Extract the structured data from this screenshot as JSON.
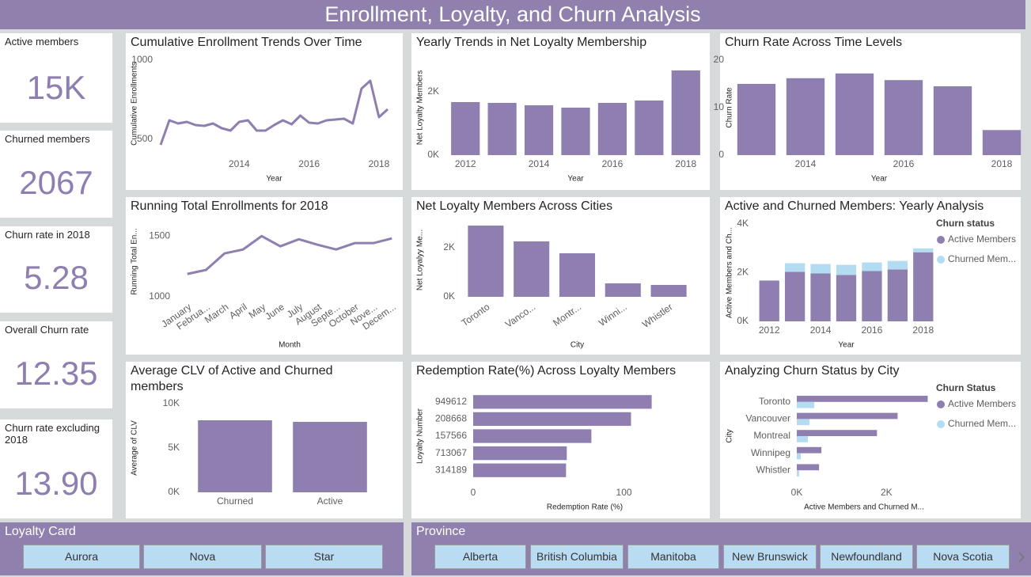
{
  "header": {
    "title": "Enrollment, Loyalty, and Churn Analysis"
  },
  "kpis": [
    {
      "label": "Active members",
      "value": "15K"
    },
    {
      "label": "Churned members",
      "value": "2067"
    },
    {
      "label": "Churn rate in 2018",
      "value": "5.28"
    },
    {
      "label": "Overall Churn rate",
      "value": "12.35"
    },
    {
      "label": "Churn rate excluding 2018",
      "value": "13.90"
    }
  ],
  "chart_data": [
    {
      "type": "line",
      "title": "Cumulative Enrollment Trends Over Time",
      "x_label": "Year",
      "y_label": "Cumulative Enrollments",
      "x": [
        2011.75,
        2012,
        2012.25,
        2012.5,
        2012.75,
        2013,
        2013.25,
        2013.5,
        2013.75,
        2014,
        2014.25,
        2014.5,
        2014.75,
        2015,
        2015.25,
        2015.5,
        2015.75,
        2016,
        2016.25,
        2016.5,
        2016.75,
        2017,
        2017.25,
        2017.5,
        2017.75,
        2018,
        2018.25
      ],
      "values": [
        465,
        620,
        600,
        610,
        590,
        585,
        600,
        570,
        555,
        610,
        620,
        555,
        555,
        590,
        620,
        595,
        650,
        605,
        600,
        620,
        625,
        630,
        600,
        820,
        870,
        640,
        690
      ],
      "color": "#8e7fb0",
      "xlim": [
        2011.75,
        2018.25
      ],
      "xticks": [
        2014,
        2016,
        2018
      ],
      "ylim": [
        430,
        1020
      ],
      "yticks": [
        500,
        1000
      ]
    },
    {
      "type": "bar",
      "title": "Yearly Trends in Net Loyalty Membership",
      "x_label": "Year",
      "y_label": "Net Loyalty Members",
      "categories": [
        "2012",
        null,
        "2014",
        null,
        "2016",
        null,
        "2018"
      ],
      "values": [
        1675,
        1650,
        1575,
        1500,
        1650,
        1725,
        2675
      ],
      "color": "#8e7fb0",
      "ylim": [
        0,
        3000
      ],
      "yticks": [
        {
          "value": 0,
          "label": "0K"
        },
        {
          "value": 2000,
          "label": "2K"
        }
      ]
    },
    {
      "type": "bar",
      "title": "Churn Rate Across Time Levels",
      "x_label": "Year",
      "y_label": "Churn Rate",
      "categories": [
        null,
        "2014",
        null,
        "2016",
        null,
        "2018"
      ],
      "values": [
        15,
        16.2,
        17.2,
        15.8,
        14.5,
        5.28
      ],
      "color": "#8e7fb0",
      "ylim": [
        0,
        20
      ],
      "yticks": [
        0,
        10,
        20
      ]
    },
    {
      "type": "line",
      "title": "Running Total Enrollments for 2018",
      "x_label": "Month",
      "y_label": "Running Total En...",
      "categories": [
        "January",
        "Februa...",
        "March",
        "April",
        "May",
        "June",
        "July",
        "August",
        "Septe...",
        "October",
        "Nove...",
        "Decem..."
      ],
      "values": [
        1188,
        1221,
        1357,
        1390,
        1500,
        1416,
        1474,
        1429,
        1390,
        1442,
        1442,
        1481
      ],
      "color": "#8e7fb0",
      "ylim": [
        1000,
        1580
      ],
      "yticks": [
        1000,
        1500
      ]
    },
    {
      "type": "bar",
      "title": "Net Loyalty Members Across Cities",
      "x_label": "City",
      "y_label": "Net Loyalyy Me...",
      "categories": [
        "Toronto",
        "Vanco...",
        "Montr...",
        "Winni...",
        "Whistler"
      ],
      "values": [
        2903,
        2258,
        1774,
        548,
        484
      ],
      "color": "#8e7fb0",
      "ylim": [
        0,
        3000
      ],
      "yticks": [
        {
          "value": 0,
          "label": "0K"
        },
        {
          "value": 2000,
          "label": "2K"
        }
      ]
    },
    {
      "type": "bar",
      "title": "Active and Churned Members: Yearly Analysis",
      "x_label": "Year",
      "y_label": "Active Members and Ch...",
      "stacked": true,
      "legend_title": "Churn status",
      "categories": [
        "2012",
        null,
        "2014",
        null,
        "2016",
        null,
        "2018"
      ],
      "series": [
        {
          "name": "Active Members",
          "color": "#8e7fb0",
          "values": [
            1677,
            2032,
            1968,
            1903,
            2065,
            2129,
            2839
          ]
        },
        {
          "name": "Churned Mem...",
          "color": "#b3dcf3",
          "values": [
            0,
            355,
            387,
            420,
            354,
            355,
            161
          ]
        }
      ],
      "ylim": [
        0,
        4000
      ],
      "yticks": [
        {
          "value": 0,
          "label": "0K"
        },
        {
          "value": 2000,
          "label": "2K"
        },
        {
          "value": 4000,
          "label": "4K"
        }
      ]
    },
    {
      "type": "bar",
      "title": "Average CLV of Active and Churned members",
      "y_label": "Average of CLV",
      "categories": [
        "Churned",
        "Active"
      ],
      "values": [
        8125,
        7946
      ],
      "color": "#8e7fb0",
      "ylim": [
        0,
        10000
      ],
      "yticks": [
        {
          "value": 0,
          "label": "0K"
        },
        {
          "value": 5000,
          "label": "5K"
        },
        {
          "value": 10000,
          "label": "10K"
        }
      ]
    },
    {
      "type": "barh",
      "title": "Redemption Rate(%) Across Loyalty Members",
      "x_label": "Redemption Rate (%)",
      "y_label": "Loyalty Number",
      "categories": [
        "949612",
        "208668",
        "157566",
        "713067",
        "314189"
      ],
      "values": [
        118.4,
        104.7,
        78.4,
        62.1,
        61.6
      ],
      "color": "#8e7fb0",
      "xlim": [
        0,
        148
      ],
      "xticks": [
        0,
        100
      ]
    },
    {
      "type": "barh",
      "title": "Analyzing Churn Status by City",
      "x_label": "Active Members and Churned M...",
      "y_label": "City",
      "legend_title": "Churn Status",
      "categories": [
        "Toronto",
        "Vancouver",
        "Montreal",
        "Winnipeg",
        "Whistler"
      ],
      "series": [
        {
          "name": "Active Members",
          "color": "#8e7fb0",
          "values": [
            2920,
            2248,
            1788,
            549,
            496
          ]
        },
        {
          "name": "Churned Mem...",
          "color": "#b3dcf3",
          "values": [
            389,
            283,
            248,
            88,
            53
          ]
        }
      ],
      "xlim": [
        0,
        3000
      ],
      "xticks": [
        {
          "value": 0,
          "label": "0K"
        },
        {
          "value": 2000,
          "label": "2K"
        }
      ]
    }
  ],
  "slicers": [
    {
      "title": "Loyalty Card",
      "options": [
        "Aurora",
        "Nova",
        "Star"
      ]
    },
    {
      "title": "Province",
      "options": [
        "Alberta",
        "British Columbia",
        "Manitoba",
        "New Brunswick",
        "Newfoundland",
        "Nova Scotia"
      ]
    }
  ]
}
